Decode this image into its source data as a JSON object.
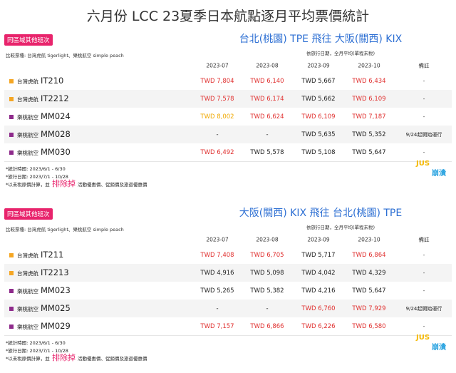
{
  "title": "六月份 LCC 23夏季日本航點逐月平均票價統計",
  "sections": [
    {
      "tag": "同區域其他班次",
      "route": "台北(桃園) TPE 飛往 大阪(關西) KIX",
      "compare": "比較票種: 台灣虎航 tigerlight、樂桃航空 simple peach",
      "subtitle": "依旅行日期，全月平均(單程未稅)",
      "columns": [
        "2023-07",
        "2023-08",
        "2023-09",
        "2023-10",
        "備註"
      ],
      "rows": [
        {
          "airline": "台灣虎航",
          "flight": "IT210",
          "color": "#f5a623",
          "cells": [
            "TWD 7,804",
            "TWD 6,140",
            "TWD 5,667",
            "TWD 6,434",
            "-"
          ],
          "cell_colors": [
            "#e0302f",
            "#e0302f",
            "#222222",
            "#e0302f",
            "#222222"
          ]
        },
        {
          "airline": "台灣虎航",
          "flight": "IT2212",
          "color": "#f5a623",
          "cells": [
            "TWD 7,578",
            "TWD 6,174",
            "TWD 5,662",
            "TWD 6,109",
            "-"
          ],
          "cell_colors": [
            "#e0302f",
            "#e0302f",
            "#222222",
            "#e0302f",
            "#222222"
          ]
        },
        {
          "airline": "樂桃航空",
          "flight": "MM024",
          "color": "#8e2a8b",
          "cells": [
            "TWD 8,002",
            "TWD 6,624",
            "TWD 6,109",
            "TWD 7,187",
            "-"
          ],
          "cell_colors": [
            "#f0a800",
            "#e0302f",
            "#e0302f",
            "#e0302f",
            "#222222"
          ]
        },
        {
          "airline": "樂桃航空",
          "flight": "MM028",
          "color": "#8e2a8b",
          "cells": [
            "-",
            "-",
            "TWD 5,635",
            "TWD 5,352",
            "9/24起開始運行"
          ],
          "cell_colors": [
            "#222222",
            "#222222",
            "#222222",
            "#222222",
            "#222222"
          ]
        },
        {
          "airline": "樂桃航空",
          "flight": "MM030",
          "color": "#8e2a8b",
          "cells": [
            "TWD 6,492",
            "TWD 5,578",
            "TWD 5,108",
            "TWD 5,647",
            "-"
          ],
          "cell_colors": [
            "#e0302f",
            "#222222",
            "#222222",
            "#222222",
            "#222222"
          ]
        }
      ],
      "notes": [
        "*統計時間: 2023/6/1 - 6/30",
        "*旅行日期: 2023/7/1 - 10/28"
      ],
      "disclaimer": [
        "*以未稅原價計算，並",
        "排除掉",
        "活動優惠價、促銷價及旅遊優惠價"
      ],
      "logo": [
        "JUS",
        "崩潰"
      ]
    },
    {
      "tag": "同區域其他班次",
      "route": "大阪(關西) KIX 飛往 台北(桃園) TPE",
      "compare": "比較票種: 台灣虎航 tigerlight、樂桃航空 simple peach",
      "subtitle": "依旅行日期，全月平均(單程未稅)",
      "columns": [
        "2023-07",
        "2023-08",
        "2023-09",
        "2023-10",
        "備註"
      ],
      "rows": [
        {
          "airline": "台灣虎航",
          "flight": "IT211",
          "color": "#f5a623",
          "cells": [
            "TWD 7,408",
            "TWD 6,705",
            "TWD 5,717",
            "TWD 6,864",
            "-"
          ],
          "cell_colors": [
            "#e0302f",
            "#e0302f",
            "#222222",
            "#e0302f",
            "#222222"
          ]
        },
        {
          "airline": "台灣虎航",
          "flight": "IT2213",
          "color": "#f5a623",
          "cells": [
            "TWD 4,916",
            "TWD 5,098",
            "TWD 4,042",
            "TWD 4,329",
            "-"
          ],
          "cell_colors": [
            "#222222",
            "#222222",
            "#222222",
            "#222222",
            "#222222"
          ]
        },
        {
          "airline": "樂桃航空",
          "flight": "MM023",
          "color": "#8e2a8b",
          "cells": [
            "TWD 5,265",
            "TWD 5,382",
            "TWD 4,216",
            "TWD 5,647",
            "-"
          ],
          "cell_colors": [
            "#222222",
            "#222222",
            "#222222",
            "#222222",
            "#222222"
          ]
        },
        {
          "airline": "樂桃航空",
          "flight": "MM025",
          "color": "#8e2a8b",
          "cells": [
            "-",
            "-",
            "TWD 6,760",
            "TWD 7,929",
            "9/24起開始運行"
          ],
          "cell_colors": [
            "#222222",
            "#222222",
            "#e0302f",
            "#e0302f",
            "#222222"
          ]
        },
        {
          "airline": "樂桃航空",
          "flight": "MM029",
          "color": "#8e2a8b",
          "cells": [
            "TWD 7,157",
            "TWD 6,866",
            "TWD 6,226",
            "TWD 6,580",
            "-"
          ],
          "cell_colors": [
            "#e0302f",
            "#e0302f",
            "#e0302f",
            "#e0302f",
            "#222222"
          ]
        }
      ],
      "notes": [
        "*統計時間: 2023/6/1 - 6/30",
        "*旅行日期: 2023/7/1 - 10/28"
      ],
      "disclaimer": [
        "*以未稅原價計算，並",
        "排除掉",
        "活動優惠價、促銷價及旅遊優惠價"
      ],
      "logo": [
        "JUS",
        "崩潰"
      ]
    }
  ]
}
